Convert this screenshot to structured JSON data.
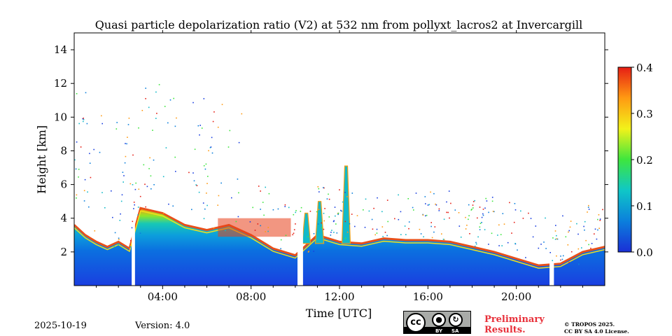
{
  "chart_data": {
    "type": "heatmap",
    "title": "Quasi particle depolarization ratio (V2) at 532 nm from pollyxt_lacros2 at Invercargill",
    "xlabel": "Time [UTC]",
    "ylabel": "Height [km]",
    "xlim": [
      0,
      24
    ],
    "ylim": [
      0,
      15
    ],
    "x_ticks": [
      4,
      8,
      12,
      16,
      20
    ],
    "x_tick_labels": [
      "04:00",
      "08:00",
      "12:00",
      "16:00",
      "20:00"
    ],
    "y_ticks": [
      2,
      4,
      6,
      8,
      10,
      12,
      14
    ],
    "y_tick_labels": [
      "2",
      "4",
      "6",
      "8",
      "10",
      "12",
      "14"
    ],
    "colorbar": {
      "min": 0.0,
      "max": 0.4,
      "ticks": [
        0.0,
        0.1,
        0.2,
        0.3,
        0.4
      ],
      "tick_labels": [
        "0.0",
        "0.1",
        "0.2",
        "0.3",
        "0.4"
      ],
      "colormap": [
        "#1a2fd6",
        "#0b7fdc",
        "#0fc7c7",
        "#3ee63e",
        "#f2f21a",
        "#ff9a12",
        "#e61e14"
      ]
    },
    "layer_top_km": [
      [
        0.0,
        3.6
      ],
      [
        0.5,
        3.0
      ],
      [
        1.0,
        2.6
      ],
      [
        1.5,
        2.3
      ],
      [
        2.0,
        2.6
      ],
      [
        2.5,
        2.2
      ],
      [
        3.0,
        4.6
      ],
      [
        4.0,
        4.3
      ],
      [
        5.0,
        3.6
      ],
      [
        6.0,
        3.3
      ],
      [
        7.0,
        3.6
      ],
      [
        8.0,
        3.0
      ],
      [
        9.0,
        2.2
      ],
      [
        10.0,
        1.8
      ],
      [
        11.0,
        3.0
      ],
      [
        12.0,
        2.6
      ],
      [
        13.0,
        2.5
      ],
      [
        14.0,
        2.8
      ],
      [
        15.0,
        2.7
      ],
      [
        16.0,
        2.7
      ],
      [
        17.0,
        2.6
      ],
      [
        18.0,
        2.3
      ],
      [
        19.0,
        2.0
      ],
      [
        20.0,
        1.6
      ],
      [
        21.0,
        1.2
      ],
      [
        22.0,
        1.3
      ],
      [
        23.0,
        2.0
      ],
      [
        24.0,
        2.3
      ]
    ],
    "data_gaps_utc": [
      [
        2.6,
        2.75
      ],
      [
        10.1,
        10.35
      ],
      [
        21.5,
        21.7
      ]
    ],
    "aerosol_plumes": [
      {
        "time_utc": 12.3,
        "top_km": 7.1
      },
      {
        "time_utc": 11.1,
        "top_km": 5.0
      },
      {
        "time_utc": 10.5,
        "top_km": 4.3
      }
    ],
    "cloud_top_high_depol": [
      {
        "time_range_utc": [
          6.5,
          9.8
        ],
        "top_km": 4.0
      }
    ]
  },
  "footer": {
    "date": "2025-10-19",
    "version": "Version: 4.0",
    "preliminary_line1": "Preliminary",
    "preliminary_line2": "Results.",
    "copyright_line1": "© TROPOS 2025.",
    "copyright_line2": "CC BY SA 4.0 License.",
    "license_badge": {
      "icon": "cc-by-sa-icon",
      "by": "BY",
      "sa": "SA",
      "cc": "cc"
    }
  }
}
